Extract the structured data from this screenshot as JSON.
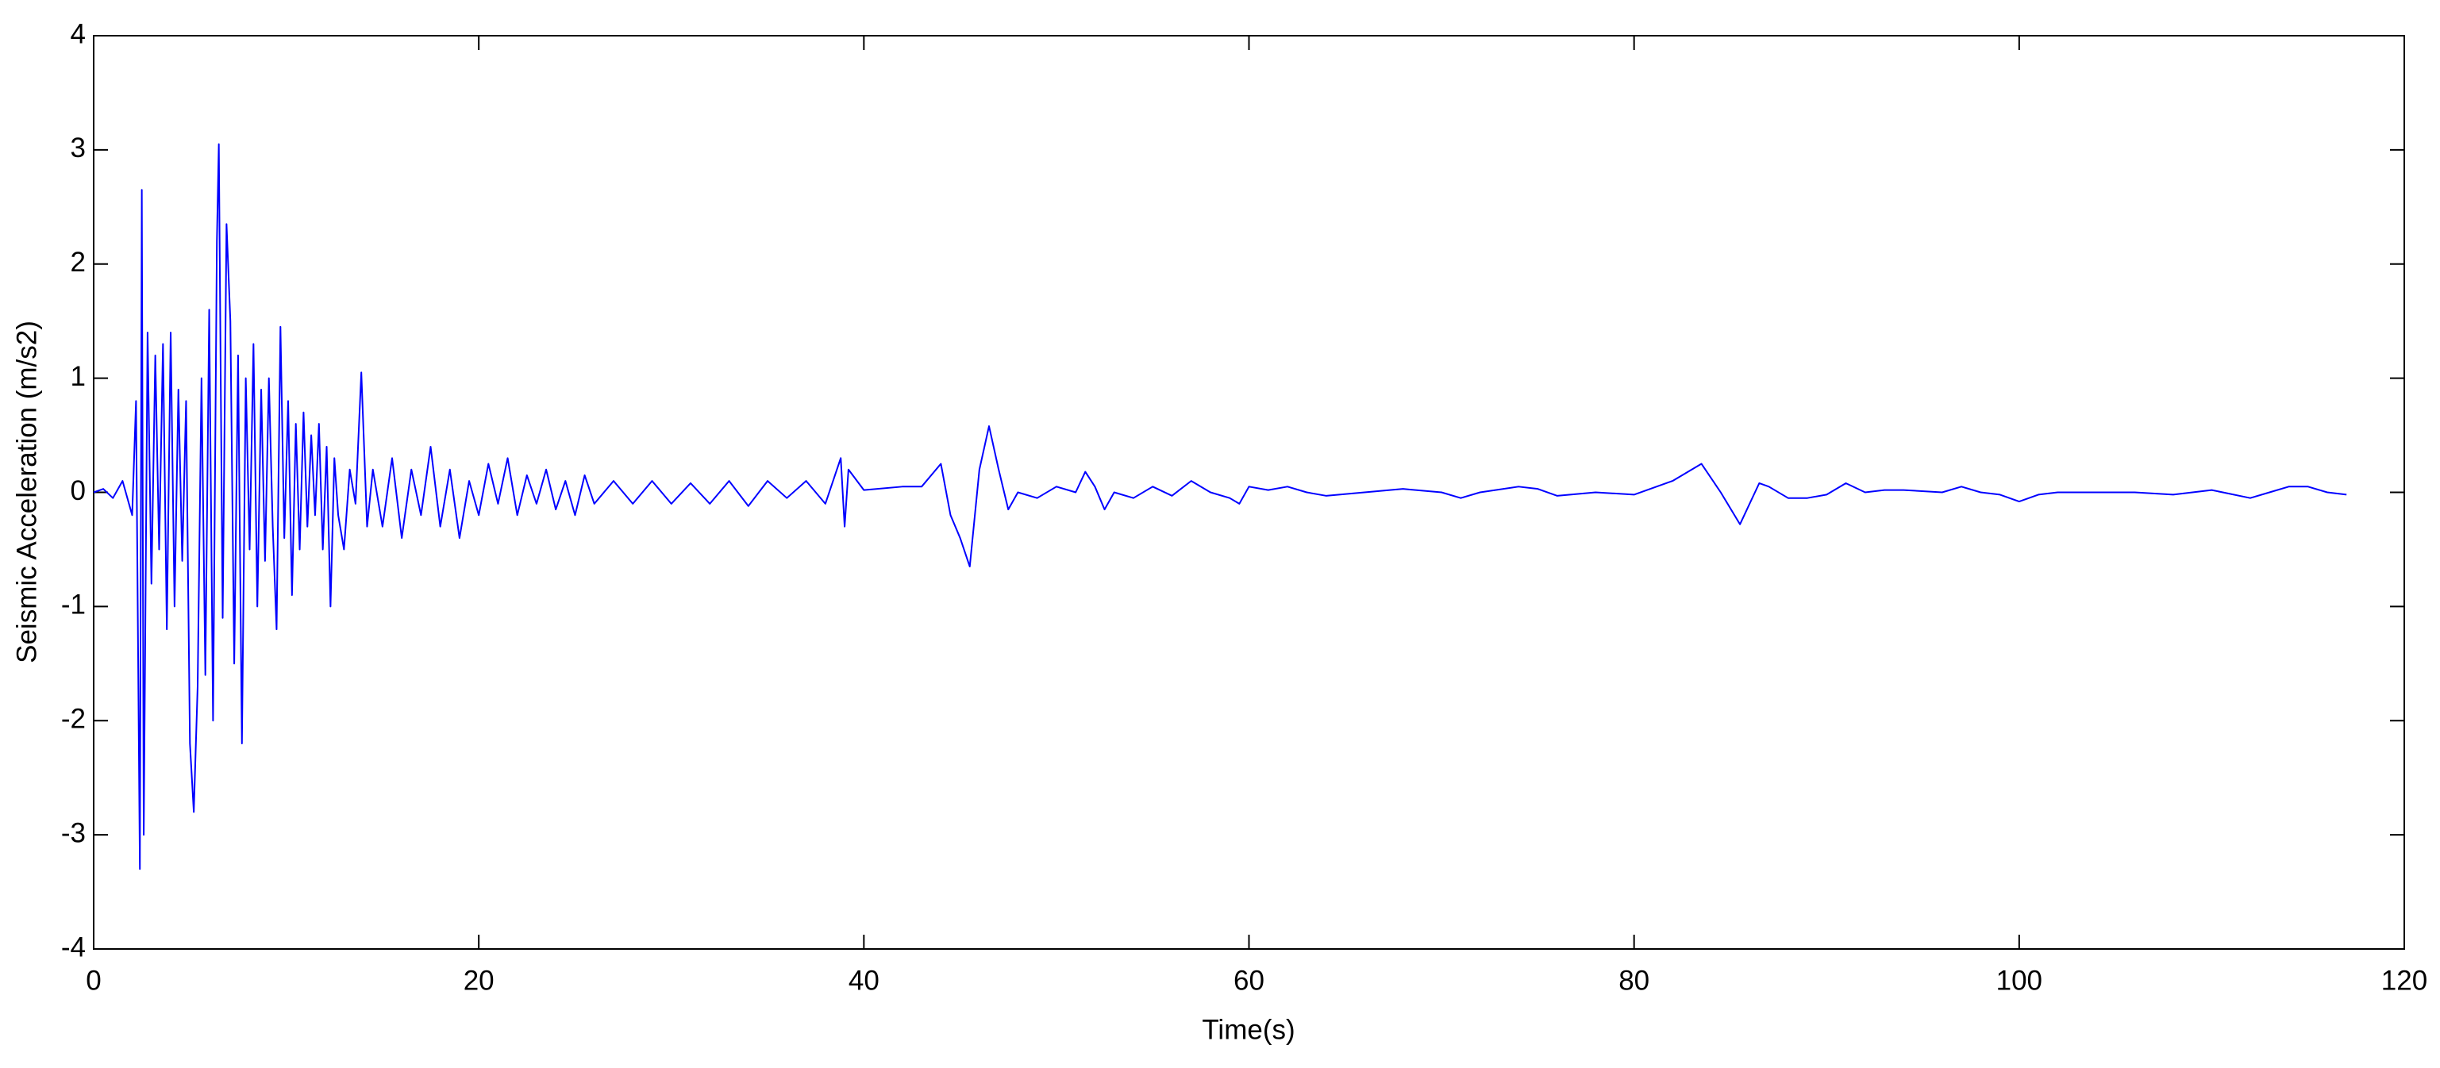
{
  "chart_data": {
    "type": "line",
    "x_label": "Time(s)",
    "y_label": "Seismic Acceleration (m/s2)",
    "xlim": [
      0,
      120
    ],
    "xticks": [
      0,
      20,
      40,
      60,
      80,
      100,
      120
    ],
    "ylim": [
      -4,
      4
    ],
    "yticks": [
      -4,
      -3,
      -2,
      -1,
      0,
      1,
      2,
      3,
      4
    ],
    "grid": false,
    "series": [
      {
        "color": "#0000ff",
        "x": [
          0,
          0.5,
          1,
          1.5,
          2,
          2.2,
          2.4,
          2.5,
          2.6,
          2.8,
          3.0,
          3.2,
          3.4,
          3.6,
          3.8,
          4.0,
          4.2,
          4.4,
          4.6,
          4.8,
          5.0,
          5.2,
          5.4,
          5.6,
          5.8,
          6.0,
          6.2,
          6.4,
          6.5,
          6.7,
          6.9,
          7.1,
          7.3,
          7.5,
          7.7,
          7.9,
          8.1,
          8.3,
          8.5,
          8.7,
          8.9,
          9.1,
          9.3,
          9.5,
          9.7,
          9.9,
          10.1,
          10.3,
          10.5,
          10.7,
          10.9,
          11.1,
          11.3,
          11.5,
          11.7,
          11.9,
          12.1,
          12.3,
          12.5,
          12.7,
          13.0,
          13.3,
          13.6,
          13.9,
          14.2,
          14.5,
          15,
          15.5,
          16,
          16.5,
          17,
          17.5,
          18,
          18.5,
          19,
          19.5,
          20,
          20.5,
          21,
          21.5,
          22,
          22.5,
          23,
          23.5,
          24,
          24.5,
          25,
          25.5,
          26,
          27,
          28,
          29,
          30,
          31,
          32,
          33,
          34,
          35,
          36,
          37,
          38,
          38.8,
          39,
          39.2,
          40,
          42,
          43,
          44,
          44.5,
          45,
          45.5,
          46,
          46.5,
          47,
          47.5,
          48,
          49,
          50,
          51,
          51.5,
          52,
          52.5,
          53,
          54,
          55,
          56,
          57,
          58,
          59,
          59.5,
          60,
          61,
          62,
          63,
          64,
          66,
          68,
          70,
          71,
          72,
          74,
          75,
          76,
          78,
          80,
          82,
          83.5,
          84.5,
          85.5,
          86.5,
          87,
          88,
          89,
          90,
          91,
          92,
          93,
          94,
          96,
          97,
          98,
          99,
          100,
          101,
          102,
          104,
          106,
          108,
          110,
          112,
          113,
          114,
          115,
          116,
          117
        ],
        "values": [
          0,
          0.03,
          -0.05,
          0.1,
          -0.2,
          0.8,
          -3.3,
          2.65,
          -3.0,
          1.4,
          -0.8,
          1.2,
          -0.5,
          1.3,
          -1.2,
          1.4,
          -1.0,
          0.9,
          -0.6,
          0.8,
          -2.2,
          -2.8,
          -1.7,
          1.0,
          -1.6,
          1.6,
          -2.0,
          2.2,
          3.05,
          -1.1,
          2.35,
          1.5,
          -1.5,
          1.2,
          -2.2,
          1.0,
          -0.5,
          1.3,
          -1.0,
          0.9,
          -0.6,
          1.0,
          -0.3,
          -1.2,
          1.45,
          -0.4,
          0.8,
          -0.9,
          0.6,
          -0.5,
          0.7,
          -0.3,
          0.5,
          -0.2,
          0.6,
          -0.5,
          0.4,
          -1.0,
          0.3,
          -0.2,
          -0.5,
          0.2,
          -0.1,
          1.05,
          -0.3,
          0.2,
          -0.3,
          0.3,
          -0.4,
          0.2,
          -0.2,
          0.4,
          -0.3,
          0.2,
          -0.4,
          0.1,
          -0.2,
          0.25,
          -0.1,
          0.3,
          -0.2,
          0.15,
          -0.1,
          0.2,
          -0.15,
          0.1,
          -0.2,
          0.15,
          -0.1,
          0.1,
          -0.1,
          0.1,
          -0.1,
          0.08,
          -0.1,
          0.1,
          -0.12,
          0.1,
          -0.05,
          0.1,
          -0.1,
          0.3,
          -0.3,
          0.2,
          0.02,
          0.05,
          0.05,
          0.25,
          -0.2,
          -0.4,
          -0.65,
          0.2,
          0.58,
          0.2,
          -0.15,
          0.0,
          -0.05,
          0.05,
          0.0,
          0.18,
          0.05,
          -0.15,
          0.0,
          -0.05,
          0.05,
          -0.03,
          0.1,
          0.0,
          -0.05,
          -0.1,
          0.05,
          0.02,
          0.05,
          0.0,
          -0.03,
          0.0,
          0.03,
          0.0,
          -0.05,
          0.0,
          0.05,
          0.03,
          -0.03,
          0.0,
          -0.02,
          0.1,
          0.25,
          0.0,
          -0.28,
          0.08,
          0.05,
          -0.05,
          -0.05,
          -0.02,
          0.08,
          0.0,
          0.02,
          0.02,
          0.0,
          0.05,
          0.0,
          -0.02,
          -0.08,
          -0.02,
          0.0,
          0.0,
          0.0,
          -0.02,
          0.02,
          -0.05,
          0.0,
          0.05,
          0.05,
          0.0,
          -0.02
        ]
      }
    ]
  }
}
